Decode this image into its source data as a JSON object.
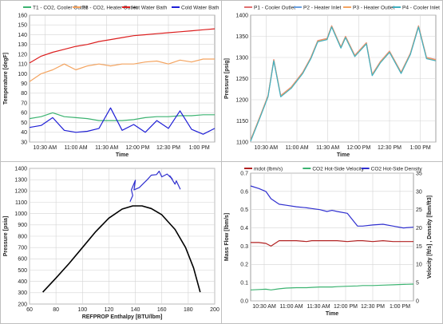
{
  "chart_data": [
    {
      "type": "line",
      "xlabel": "Time",
      "ylabel": "Temperature [degF]",
      "xticks": [
        "10:30 AM",
        "11:00 AM",
        "11:30 AM",
        "12:00 PM",
        "12:30 PM",
        "1:00 PM"
      ],
      "xlim": [
        0,
        160
      ],
      "ylim": [
        30,
        160
      ],
      "ytick_step": 10,
      "legend_position": "top",
      "grid": true,
      "x": [
        0,
        10,
        20,
        30,
        40,
        50,
        60,
        70,
        80,
        90,
        100,
        110,
        120,
        130,
        140,
        150,
        160
      ],
      "series": [
        {
          "name": "T1 - CO2, Cooler Outlet",
          "color": "#3cb371",
          "values": [
            54,
            56,
            60,
            56,
            55,
            54,
            52,
            52,
            52,
            53,
            55,
            56,
            56,
            57,
            57,
            58,
            58
          ]
        },
        {
          "name": "T3 - CO2, Heater Outlet",
          "color": "#f4a460",
          "values": [
            92,
            100,
            104,
            110,
            104,
            108,
            110,
            108,
            110,
            110,
            112,
            113,
            110,
            114,
            112,
            115,
            115
          ]
        },
        {
          "name": "Hot Water Bath",
          "color": "#dc1e1e",
          "values": [
            111,
            118,
            122,
            125,
            128,
            130,
            133,
            135,
            137,
            139,
            140,
            141,
            142,
            143,
            144,
            145,
            146
          ]
        },
        {
          "name": "Cold Water Bath",
          "color": "#1f1fd6",
          "values": [
            45,
            47,
            55,
            42,
            40,
            41,
            44,
            65,
            42,
            48,
            40,
            52,
            44,
            62,
            43,
            38,
            44
          ]
        }
      ]
    },
    {
      "type": "line",
      "xlabel": "Time",
      "ylabel": "Pressure [psig]",
      "xticks": [
        "10:30 AM",
        "11:00 AM",
        "11:30 AM",
        "12:00 PM",
        "12:30 PM",
        "1:00 PM"
      ],
      "xlim": [
        0,
        160
      ],
      "ylim": [
        1100,
        1400
      ],
      "ytick_step": 50,
      "legend_position": "top",
      "grid": true,
      "x": [
        0,
        8,
        15,
        20,
        26,
        35,
        45,
        52,
        58,
        66,
        70,
        78,
        82,
        90,
        100,
        105,
        112,
        120,
        130,
        138,
        145,
        152,
        160
      ],
      "series": [
        {
          "name": "P1 - Cooler Outlet",
          "color": "#e07070",
          "values": [
            1105,
            1160,
            1210,
            1295,
            1210,
            1230,
            1265,
            1300,
            1340,
            1345,
            1375,
            1325,
            1350,
            1305,
            1335,
            1260,
            1290,
            1315,
            1265,
            1310,
            1375,
            1300,
            1295
          ]
        },
        {
          "name": "P2 - Heater Inlet",
          "color": "#6aa0e0",
          "values": [
            1103,
            1158,
            1208,
            1293,
            1208,
            1228,
            1263,
            1298,
            1338,
            1343,
            1373,
            1323,
            1348,
            1303,
            1333,
            1258,
            1288,
            1313,
            1263,
            1308,
            1373,
            1298,
            1293
          ]
        },
        {
          "name": "P3 - Heater Outlet",
          "color": "#f4a460",
          "values": [
            1104,
            1159,
            1209,
            1294,
            1209,
            1229,
            1264,
            1299,
            1339,
            1344,
            1374,
            1324,
            1349,
            1304,
            1334,
            1259,
            1289,
            1314,
            1264,
            1309,
            1374,
            1299,
            1294
          ]
        },
        {
          "name": "P4 - Cooler Inlet",
          "color": "#40b0c0",
          "values": [
            1102,
            1157,
            1207,
            1292,
            1207,
            1227,
            1262,
            1297,
            1337,
            1342,
            1372,
            1322,
            1347,
            1302,
            1332,
            1257,
            1287,
            1312,
            1262,
            1307,
            1372,
            1297,
            1292
          ]
        }
      ]
    },
    {
      "type": "line",
      "xlabel": "REFPROP Enthalpy [BTU/lbm]",
      "ylabel": "Pressure [psia]",
      "xlim": [
        60,
        200
      ],
      "ylim": [
        200,
        1400
      ],
      "xtick_step": 20,
      "ytick_step": 100,
      "grid": true,
      "series": [
        {
          "kind": "dome",
          "color": "#000000",
          "x": [
            70,
            80,
            90,
            100,
            110,
            120,
            130,
            138,
            145,
            152,
            160,
            170,
            178,
            184,
            189
          ],
          "y": [
            305,
            430,
            560,
            700,
            840,
            960,
            1040,
            1068,
            1068,
            1045,
            990,
            860,
            700,
            520,
            305
          ]
        },
        {
          "kind": "cycle",
          "color": "#2f2fcf",
          "x": [
            136,
            138,
            137,
            140,
            139,
            143,
            146,
            149,
            152,
            156,
            158,
            160,
            164,
            168,
            166,
            170,
            171,
            174
          ],
          "y": [
            1105,
            1160,
            1210,
            1295,
            1210,
            1230,
            1265,
            1300,
            1340,
            1345,
            1375,
            1325,
            1350,
            1305,
            1335,
            1260,
            1290,
            1215
          ]
        }
      ]
    },
    {
      "type": "line",
      "xlabel": "Time",
      "ylabel": "Mass Flow [lbm/s]",
      "y2label": "Velocity [ft/s] , Density [lbm/ft3]",
      "xticks": [
        "10:30 AM",
        "11:00 AM",
        "11:30 AM",
        "12:00 PM",
        "12:30 PM",
        "1:00 PM"
      ],
      "xlim": [
        0,
        160
      ],
      "ylim": [
        0,
        0.7
      ],
      "ytick_step": 0.1,
      "y2lim": [
        0,
        35
      ],
      "y2tick_step": 5,
      "legend_position": "top",
      "grid": true,
      "x": [
        0,
        8,
        15,
        20,
        28,
        35,
        45,
        55,
        60,
        68,
        75,
        80,
        85,
        95,
        105,
        110,
        120,
        130,
        140,
        150,
        160
      ],
      "series": [
        {
          "name": "mdot  (lbm/s)",
          "axis": "left",
          "color": "#b22222",
          "values": [
            0.32,
            0.32,
            0.315,
            0.3,
            0.33,
            0.33,
            0.33,
            0.325,
            0.33,
            0.33,
            0.33,
            0.33,
            0.33,
            0.325,
            0.33,
            0.33,
            0.325,
            0.33,
            0.325,
            0.325,
            0.325
          ]
        },
        {
          "name": "CO2 Hot-Side Velocity",
          "axis": "right",
          "color": "#3cb371",
          "values": [
            3.0,
            3.1,
            3.2,
            3.0,
            3.3,
            3.5,
            3.6,
            3.6,
            3.7,
            3.8,
            3.8,
            3.8,
            3.9,
            4.0,
            4.1,
            4.2,
            4.2,
            4.3,
            4.4,
            4.5,
            4.6
          ]
        },
        {
          "name": "CO2 Hot-Side Density",
          "axis": "right",
          "color": "#2f2fcf",
          "values": [
            31.5,
            30.8,
            30.0,
            28.0,
            26.5,
            26.2,
            25.8,
            25.5,
            25.3,
            25.0,
            24.5,
            24.8,
            24.5,
            24.0,
            20.5,
            20.5,
            20.8,
            21.0,
            20.5,
            20.0,
            20.2
          ]
        }
      ]
    }
  ]
}
